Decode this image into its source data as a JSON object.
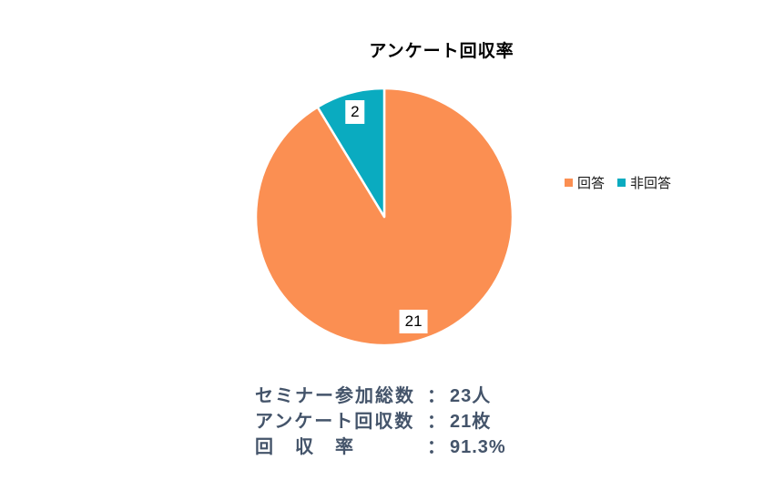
{
  "title": "アンケート回収率",
  "chart_data": {
    "type": "pie",
    "title": "アンケート回収率",
    "categories": [
      "回答",
      "非回答"
    ],
    "values": [
      21,
      2
    ],
    "total": 23,
    "colors": [
      "#FB8F52",
      "#0AABC0"
    ],
    "slice_ids": [
      "responses",
      "non-responses"
    ],
    "start_angle_deg": 0,
    "direction": "clockwise",
    "data_labels": "values",
    "data_label_style": "white box, black text, inside end",
    "legend_position": "right",
    "slice_border_color": "#ffffff"
  },
  "legend": {
    "items": [
      {
        "label": "回答",
        "color": "#FB8F52"
      },
      {
        "label": "非回答",
        "color": "#0AABC0"
      }
    ]
  },
  "summary": {
    "text_color": "#44546A",
    "lines": [
      {
        "label": "セミナー参加総数",
        "separator": "：",
        "value": "23人"
      },
      {
        "label": "アンケート回収数",
        "separator": "：",
        "value": "21枚"
      },
      {
        "label": "回　収　率",
        "separator": "：",
        "value": "91.3%"
      }
    ]
  }
}
